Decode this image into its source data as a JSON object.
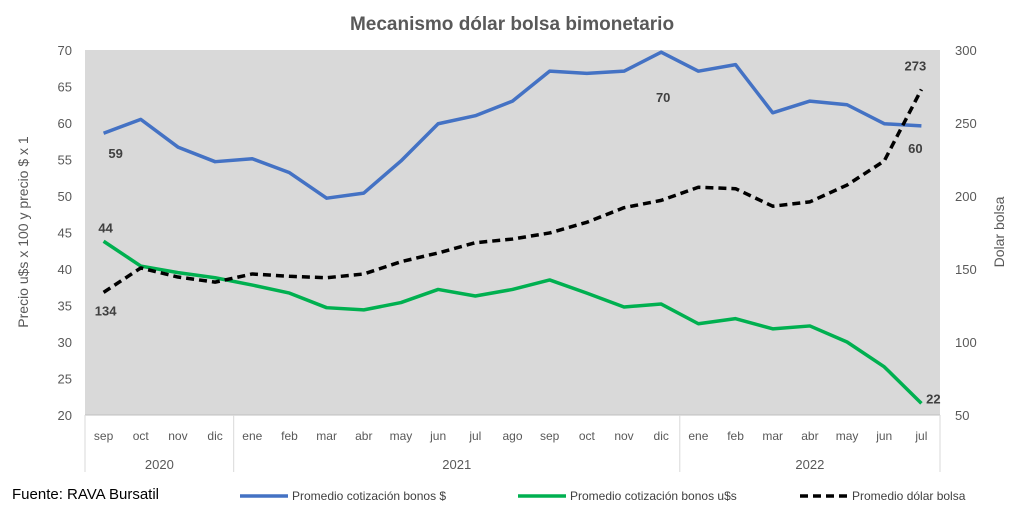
{
  "chart_data": {
    "type": "line",
    "title": "Mecanismo dólar bolsa bimonetario",
    "ylabel": "Precio u$s x 100 y precio $ x 1",
    "y2label": "Dolar bolsa",
    "ylim": [
      20,
      70
    ],
    "y2lim": [
      50,
      300
    ],
    "yticks": [
      20,
      25,
      30,
      35,
      40,
      45,
      50,
      55,
      60,
      65,
      70
    ],
    "y2ticks": [
      50,
      100,
      150,
      200,
      250,
      300
    ],
    "categories": [
      "sep",
      "oct",
      "nov",
      "dic",
      "ene",
      "feb",
      "mar",
      "abr",
      "may",
      "jun",
      "jul",
      "ago",
      "sep",
      "oct",
      "nov",
      "dic",
      "ene",
      "feb",
      "mar",
      "abr",
      "may",
      "jun",
      "jul"
    ],
    "years": [
      {
        "label": "2020",
        "count": 4
      },
      {
        "label": "2021",
        "count": 12
      },
      {
        "label": "2022",
        "count": 7
      }
    ],
    "grid": false,
    "legend_position": "bottom",
    "series": [
      {
        "name": "Promedio cotización bonos $",
        "axis": "left",
        "color": "#4472C4",
        "dash": false,
        "values": [
          58.6,
          60.5,
          56.7,
          54.7,
          55.1,
          53.2,
          49.7,
          50.4,
          54.8,
          59.9,
          61,
          63,
          67.1,
          66.8,
          67.1,
          69.7,
          67.1,
          68,
          61.4,
          63,
          62.5,
          59.9,
          59.6
        ],
        "labels": [
          {
            "index": 0,
            "text": "59"
          },
          {
            "index": 15,
            "text": "70"
          },
          {
            "index": 22,
            "text": "60"
          }
        ]
      },
      {
        "name": "Promedio cotización bonos u$s",
        "axis": "left",
        "color": "#00B050",
        "dash": false,
        "values": [
          43.8,
          40.4,
          39.5,
          38.8,
          37.8,
          36.7,
          34.7,
          34.4,
          35.4,
          37.2,
          36.3,
          37.2,
          38.5,
          36.7,
          34.8,
          35.2,
          32.5,
          33.2,
          31.8,
          32.2,
          30,
          26.6,
          21.6
        ],
        "labels": [
          {
            "index": 0,
            "text": "44"
          },
          {
            "index": 22,
            "text": "22"
          }
        ]
      },
      {
        "name": "Promedio dólar bolsa",
        "axis": "right",
        "color": "#000000",
        "dash": true,
        "values": [
          134,
          150.7,
          144.5,
          141,
          146.6,
          145,
          144,
          146.6,
          155,
          161,
          168,
          170.5,
          174.7,
          182,
          192,
          197,
          206,
          205,
          193,
          196,
          207.5,
          224,
          273
        ],
        "labels": [
          {
            "index": 0,
            "text": "134"
          },
          {
            "index": 22,
            "text": "273"
          }
        ]
      }
    ],
    "plot_background": "#D9D9D9"
  },
  "source": "Fuente: RAVA Bursatil"
}
